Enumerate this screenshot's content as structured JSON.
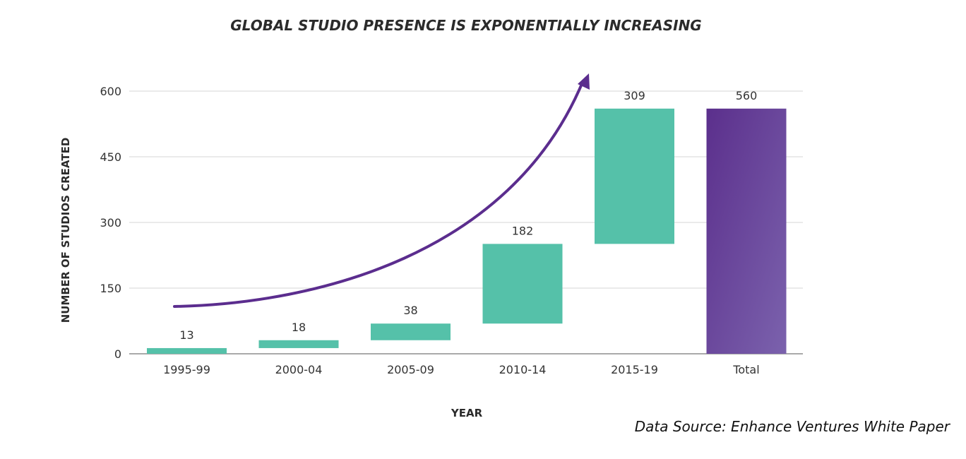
{
  "chart_data": {
    "type": "waterfall",
    "title": "GLOBAL STUDIO PRESENCE IS EXPONENTIALLY INCREASING",
    "xlabel": "YEAR",
    "ylabel": "NUMBER OF STUDIOS CREATED",
    "ylim": [
      0,
      600
    ],
    "yticks": [
      0,
      150,
      300,
      450,
      600
    ],
    "grid": true,
    "categories": [
      "1995-99",
      "2000-04",
      "2005-09",
      "2010-14",
      "2015-19",
      "Total"
    ],
    "values": [
      13,
      18,
      38,
      182,
      309,
      560
    ],
    "total_index": 5,
    "annotations": [
      "exponential growth arrow"
    ],
    "source": "Data Source: Enhance Ventures White Paper"
  },
  "colors": {
    "increment_bar": "#55c1a9",
    "total_bar_start": "#5b2f8c",
    "total_bar_end": "#7b62ad",
    "arrow": "#5b2d8e",
    "grid": "#d6d6d6"
  }
}
